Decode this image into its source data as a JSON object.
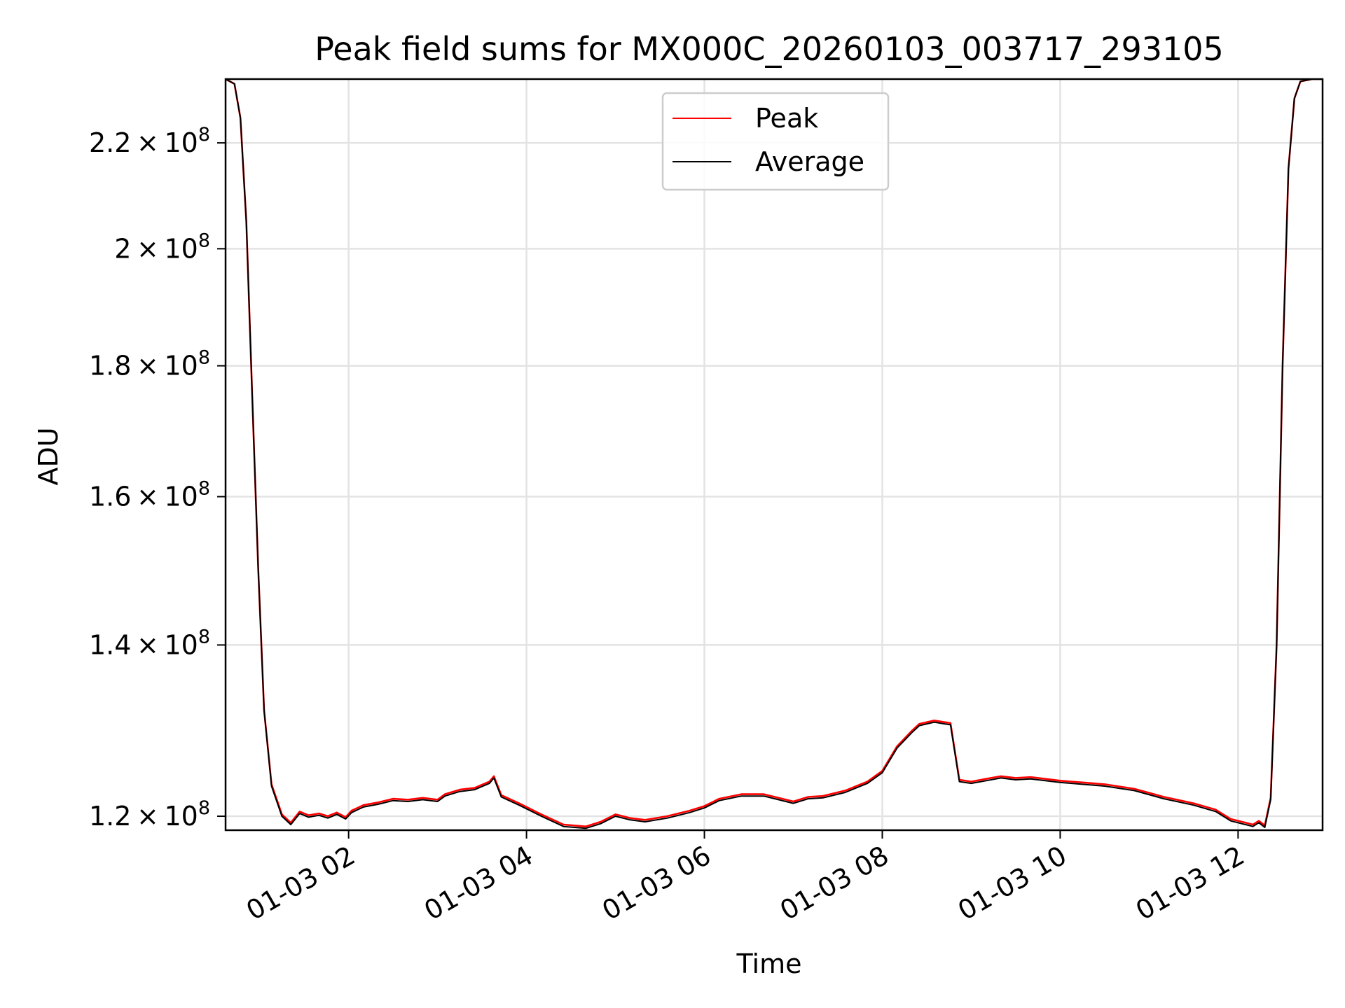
{
  "chart_data": {
    "type": "line",
    "title": "Peak field sums for MX000C_20260103_003717_293105",
    "xlabel": "Time",
    "ylabel": "ADU",
    "y_scale": "log",
    "xlim": [
      "2026-01-03 00:37",
      "2026-01-03 12:57"
    ],
    "ylim": [
      118500000,
      233000000
    ],
    "grid": true,
    "legend_position": "upper center",
    "x_ticks": [
      "2026-01-03 02:00",
      "2026-01-03 04:00",
      "2026-01-03 06:00",
      "2026-01-03 08:00",
      "2026-01-03 10:00",
      "2026-01-03 12:00"
    ],
    "x_tick_labels": [
      "01-03 02",
      "01-03 04",
      "01-03 06",
      "01-03 08",
      "01-03 10",
      "01-03 12"
    ],
    "y_ticks": [
      {
        "value": 120000000,
        "mantissa": "1.2",
        "exponent": "8"
      },
      {
        "value": 140000000,
        "mantissa": "1.4",
        "exponent": "8"
      },
      {
        "value": 160000000,
        "mantissa": "1.6",
        "exponent": "8"
      },
      {
        "value": 180000000,
        "mantissa": "1.8",
        "exponent": "8"
      },
      {
        "value": 200000000,
        "mantissa": "2",
        "exponent": "8"
      },
      {
        "value": 220000000,
        "mantissa": "2.2",
        "exponent": "8"
      }
    ],
    "x": [
      "2026-01-03 00:37",
      "2026-01-03 00:43",
      "2026-01-03 00:47",
      "2026-01-03 00:51",
      "2026-01-03 00:55",
      "2026-01-03 00:59",
      "2026-01-03 01:03",
      "2026-01-03 01:08",
      "2026-01-03 01:15",
      "2026-01-03 01:21",
      "2026-01-03 01:27",
      "2026-01-03 01:33",
      "2026-01-03 01:40",
      "2026-01-03 01:46",
      "2026-01-03 01:52",
      "2026-01-03 01:58",
      "2026-01-03 02:02",
      "2026-01-03 02:10",
      "2026-01-03 02:20",
      "2026-01-03 02:30",
      "2026-01-03 02:40",
      "2026-01-03 02:50",
      "2026-01-03 03:00",
      "2026-01-03 03:05",
      "2026-01-03 03:15",
      "2026-01-03 03:25",
      "2026-01-03 03:35",
      "2026-01-03 03:38",
      "2026-01-03 03:43",
      "2026-01-03 03:55",
      "2026-01-03 04:10",
      "2026-01-03 04:25",
      "2026-01-03 04:40",
      "2026-01-03 04:50",
      "2026-01-03 05:00",
      "2026-01-03 05:10",
      "2026-01-03 05:20",
      "2026-01-03 05:35",
      "2026-01-03 05:50",
      "2026-01-03 06:00",
      "2026-01-03 06:10",
      "2026-01-03 06:25",
      "2026-01-03 06:40",
      "2026-01-03 06:50",
      "2026-01-03 07:00",
      "2026-01-03 07:10",
      "2026-01-03 07:20",
      "2026-01-03 07:35",
      "2026-01-03 07:50",
      "2026-01-03 08:00",
      "2026-01-03 08:10",
      "2026-01-03 08:20",
      "2026-01-03 08:25",
      "2026-01-03 08:35",
      "2026-01-03 08:42",
      "2026-01-03 08:46",
      "2026-01-03 08:52",
      "2026-01-03 09:00",
      "2026-01-03 09:10",
      "2026-01-03 09:20",
      "2026-01-03 09:30",
      "2026-01-03 09:40",
      "2026-01-03 09:50",
      "2026-01-03 10:00",
      "2026-01-03 10:15",
      "2026-01-03 10:30",
      "2026-01-03 10:50",
      "2026-01-03 11:10",
      "2026-01-03 11:30",
      "2026-01-03 11:45",
      "2026-01-03 11:55",
      "2026-01-03 12:05",
      "2026-01-03 12:10",
      "2026-01-03 12:14",
      "2026-01-03 12:18",
      "2026-01-03 12:22",
      "2026-01-03 12:26",
      "2026-01-03 12:30",
      "2026-01-03 12:34",
      "2026-01-03 12:38",
      "2026-01-03 12:42",
      "2026-01-03 12:50",
      "2026-01-03 12:57"
    ],
    "series": [
      {
        "name": "Peak",
        "color": "#ff0000",
        "values": [
          233000000,
          232000000,
          225000000,
          205000000,
          175000000,
          150000000,
          132000000,
          123500000,
          120200000,
          119300000,
          120500000,
          120100000,
          120300000,
          120000000,
          120400000,
          119900000,
          120600000,
          121200000,
          121500000,
          121900000,
          121800000,
          122000000,
          121800000,
          122400000,
          122900000,
          123100000,
          123800000,
          124400000,
          122300000,
          121400000,
          120200000,
          119100000,
          118900000,
          119400000,
          120200000,
          119800000,
          119600000,
          120000000,
          120600000,
          121100000,
          121900000,
          122400000,
          122400000,
          122000000,
          121600000,
          122100000,
          122200000,
          122800000,
          123800000,
          125000000,
          127800000,
          129600000,
          130400000,
          130800000,
          130600000,
          130500000,
          124000000,
          123800000,
          124100000,
          124400000,
          124200000,
          124300000,
          124100000,
          123900000,
          123700000,
          123500000,
          123000000,
          122100000,
          121400000,
          120700000,
          119700000,
          119300000,
          119100000,
          119500000,
          119000000,
          122000000,
          140000000,
          180000000,
          215000000,
          229000000,
          232500000,
          233000000,
          233000000
        ]
      },
      {
        "name": "Average",
        "color": "#000000",
        "values": [
          233000000,
          232000000,
          225000000,
          205000000,
          175000000,
          150000000,
          132000000,
          123300000,
          120000000,
          119100000,
          120300000,
          119900000,
          120100000,
          119800000,
          120200000,
          119700000,
          120400000,
          121000000,
          121300000,
          121700000,
          121600000,
          121800000,
          121600000,
          122200000,
          122700000,
          122900000,
          123600000,
          124200000,
          122100000,
          121200000,
          120000000,
          118900000,
          118700000,
          119200000,
          120000000,
          119600000,
          119400000,
          119800000,
          120400000,
          120900000,
          121700000,
          122200000,
          122200000,
          121800000,
          121400000,
          121900000,
          122000000,
          122600000,
          123600000,
          124800000,
          127600000,
          129400000,
          130200000,
          130600000,
          130400000,
          130300000,
          123800000,
          123600000,
          123900000,
          124200000,
          124000000,
          124100000,
          123900000,
          123700000,
          123500000,
          123300000,
          122800000,
          121900000,
          121200000,
          120500000,
          119500000,
          119100000,
          118900000,
          119300000,
          118800000,
          121800000,
          140000000,
          180000000,
          215000000,
          229000000,
          232500000,
          233000000,
          233000000
        ]
      }
    ]
  }
}
